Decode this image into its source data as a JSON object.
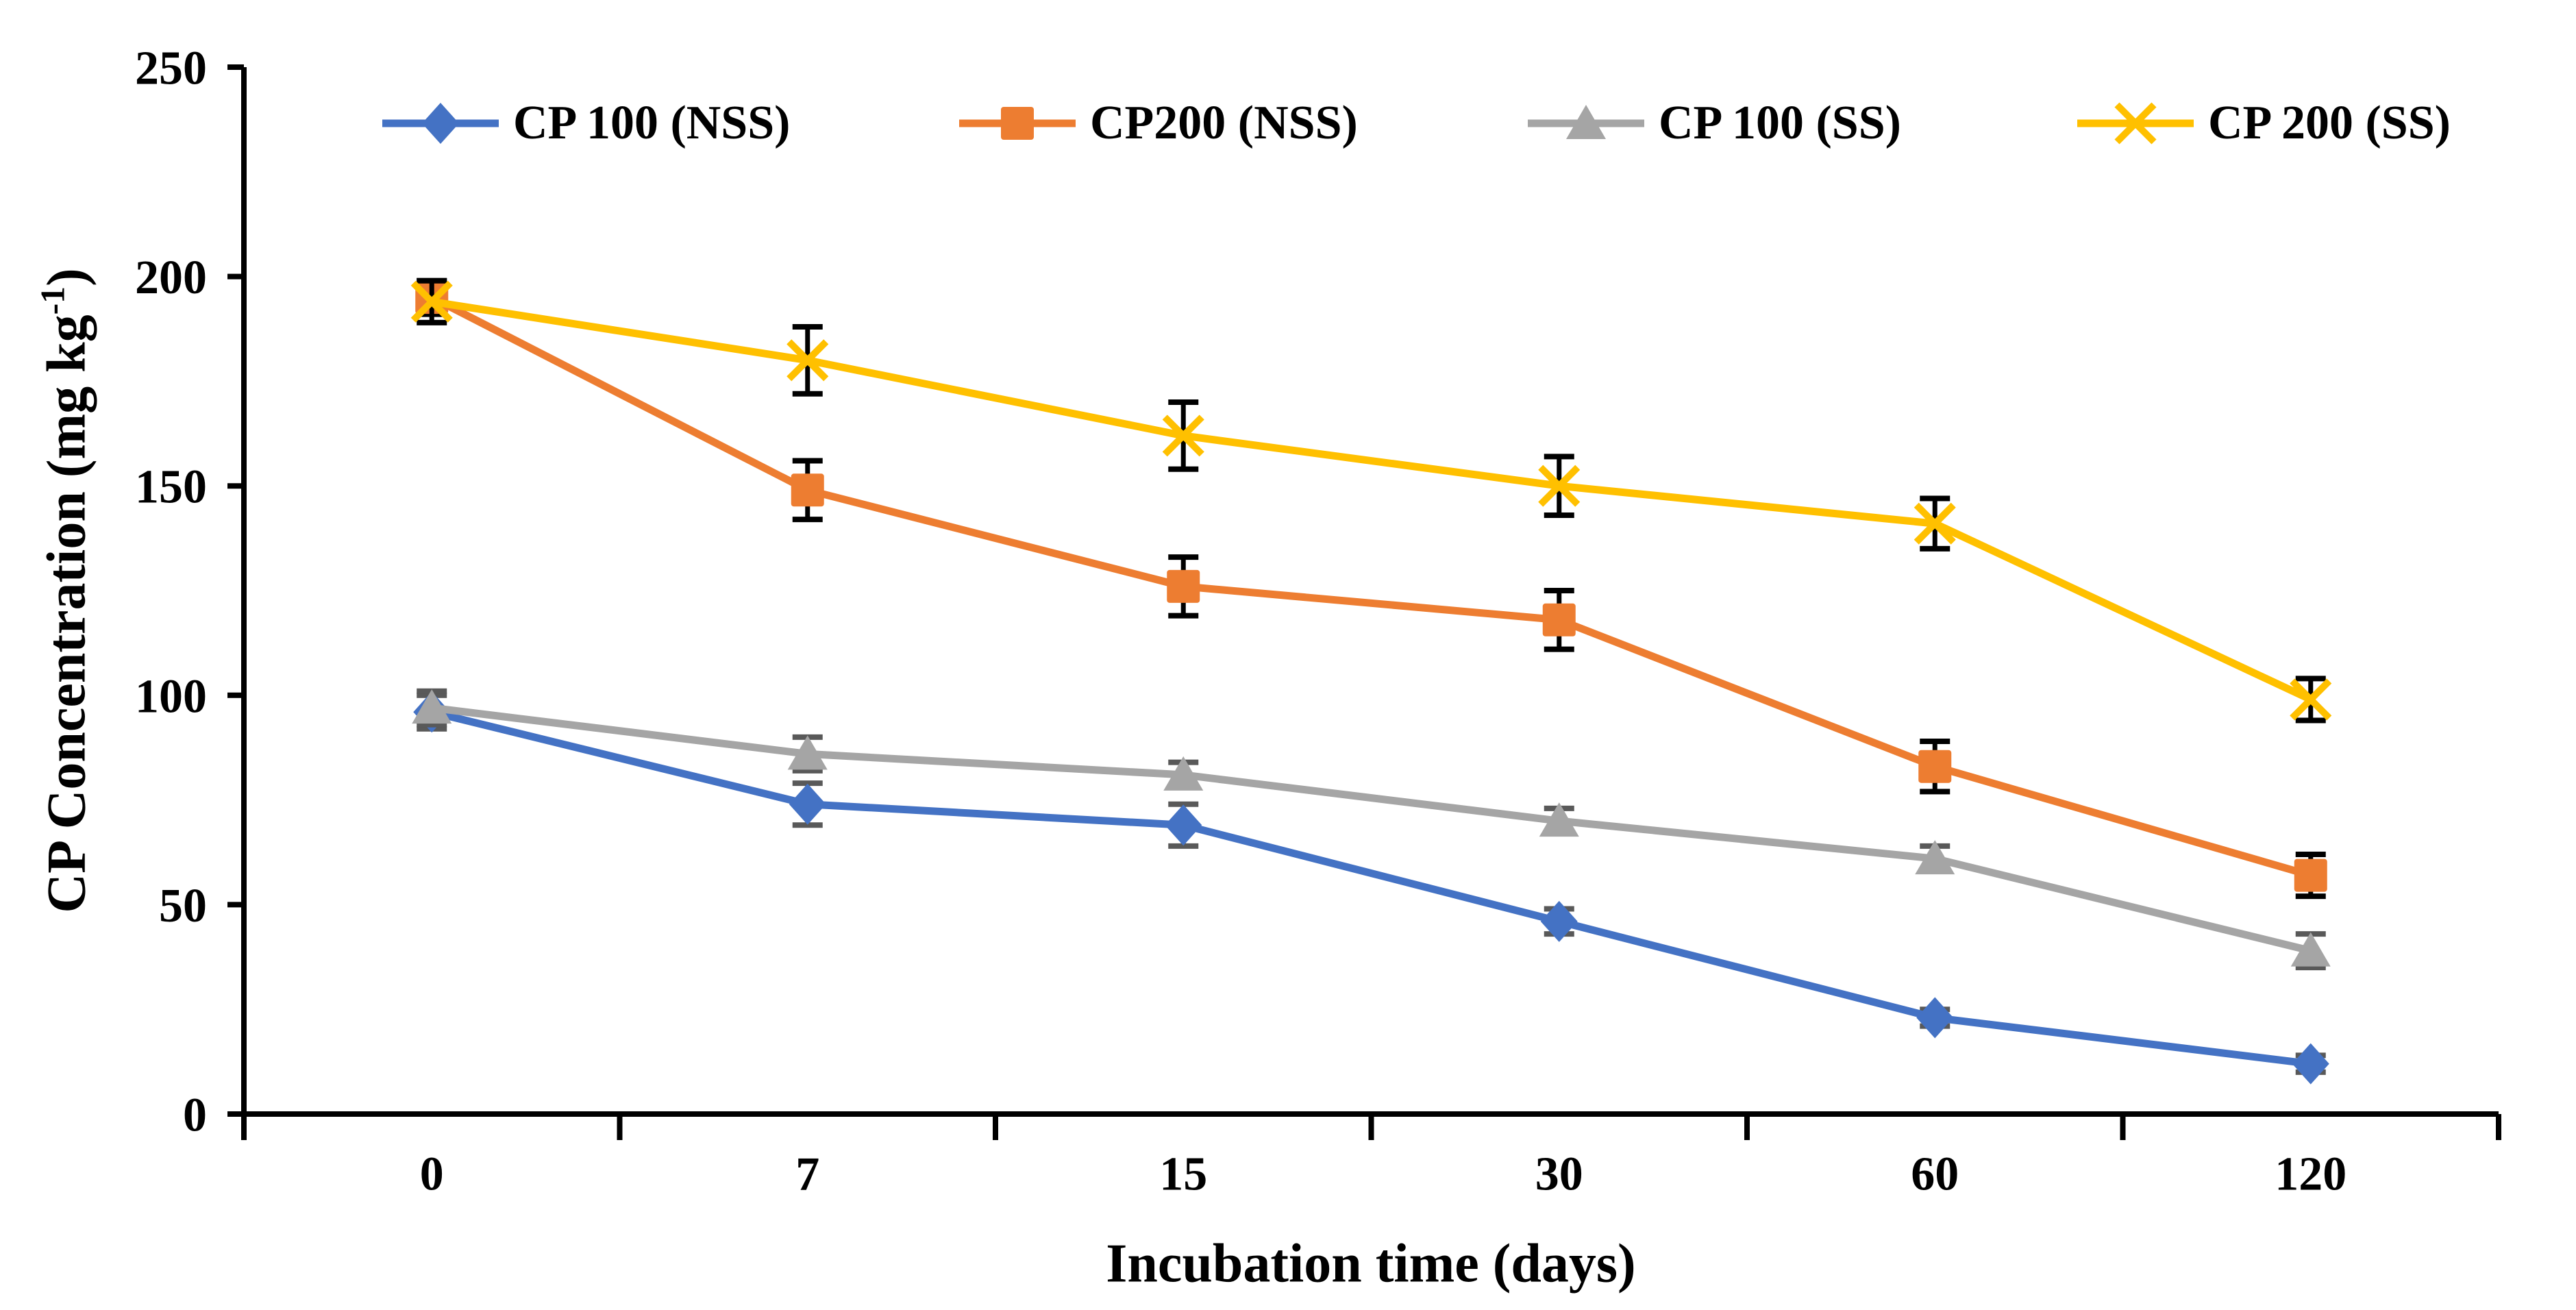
{
  "chart_data": {
    "type": "line",
    "title": "",
    "xlabel": "Incubation time (days)",
    "ylabel": {
      "prefix": "CP Concentration (mg kg",
      "sup": "-1",
      "suffix": ")"
    },
    "categories": [
      0,
      7,
      15,
      30,
      60,
      120
    ],
    "y_ticks": [
      0,
      50,
      100,
      150,
      200,
      250
    ],
    "ylim": [
      0,
      250
    ],
    "grid": false,
    "legend_position": "top",
    "error_bars": true,
    "axis_color": "#000000",
    "series": [
      {
        "name": "CP 100 (NSS)",
        "color": "#4472C4",
        "marker": "diamond",
        "error_color": "#595959",
        "values": [
          96,
          74,
          69,
          46,
          23,
          12
        ],
        "errors": [
          4,
          5,
          5,
          3,
          2,
          2
        ]
      },
      {
        "name": "CP200 (NSS)",
        "color": "#ED7D31",
        "marker": "square",
        "error_color": "#000000",
        "values": [
          195,
          149,
          126,
          118,
          83,
          57
        ],
        "errors": [
          4,
          7,
          7,
          7,
          6,
          5
        ]
      },
      {
        "name": "CP 100 (SS)",
        "color": "#A5A5A5",
        "marker": "triangle",
        "error_color": "#595959",
        "values": [
          97,
          86,
          81,
          70,
          61,
          39
        ],
        "errors": [
          4,
          4,
          3,
          3,
          3,
          4
        ]
      },
      {
        "name": "CP 200 (SS)",
        "color": "#FFC000",
        "marker": "x",
        "error_color": "#000000",
        "values": [
          194,
          180,
          162,
          150,
          141,
          99
        ],
        "errors": [
          5,
          8,
          8,
          7,
          6,
          5
        ]
      }
    ]
  }
}
